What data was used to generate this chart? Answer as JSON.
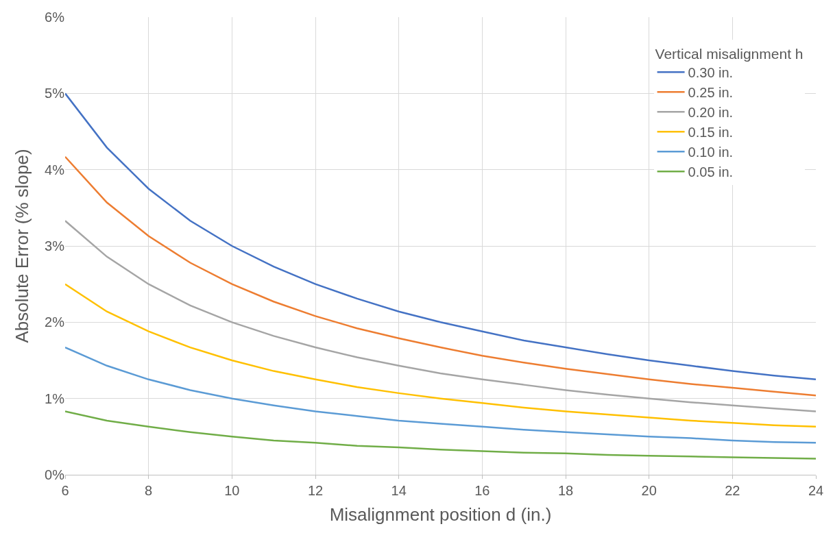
{
  "chart_data": {
    "type": "line",
    "xlabel": "Misalignment position d (in.)",
    "ylabel": "Absolute Error (% slope)",
    "legend_title": "Vertical misalignment h",
    "x": [
      6,
      7,
      8,
      9,
      10,
      11,
      12,
      13,
      14,
      15,
      16,
      17,
      18,
      19,
      20,
      21,
      22,
      23,
      24
    ],
    "series": [
      {
        "name": "0.30 in.",
        "color": "#4472c4",
        "values": [
          5.0,
          4.29,
          3.75,
          3.33,
          3.0,
          2.73,
          2.5,
          2.31,
          2.14,
          2.0,
          1.88,
          1.76,
          1.67,
          1.58,
          1.5,
          1.43,
          1.36,
          1.3,
          1.25
        ]
      },
      {
        "name": "0.25 in.",
        "color": "#ed7d31",
        "values": [
          4.17,
          3.57,
          3.13,
          2.78,
          2.5,
          2.27,
          2.08,
          1.92,
          1.79,
          1.67,
          1.56,
          1.47,
          1.39,
          1.32,
          1.25,
          1.19,
          1.14,
          1.09,
          1.04
        ]
      },
      {
        "name": "0.20 in.",
        "color": "#a5a5a5",
        "values": [
          3.33,
          2.86,
          2.5,
          2.22,
          2.0,
          1.82,
          1.67,
          1.54,
          1.43,
          1.33,
          1.25,
          1.18,
          1.11,
          1.05,
          1.0,
          0.95,
          0.91,
          0.87,
          0.83
        ]
      },
      {
        "name": "0.15 in.",
        "color": "#ffc000",
        "values": [
          2.5,
          2.14,
          1.88,
          1.67,
          1.5,
          1.36,
          1.25,
          1.15,
          1.07,
          1.0,
          0.94,
          0.88,
          0.83,
          0.79,
          0.75,
          0.71,
          0.68,
          0.65,
          0.63
        ]
      },
      {
        "name": "0.10 in.",
        "color": "#5b9bd5",
        "values": [
          1.67,
          1.43,
          1.25,
          1.11,
          1.0,
          0.91,
          0.83,
          0.77,
          0.71,
          0.67,
          0.63,
          0.59,
          0.56,
          0.53,
          0.5,
          0.48,
          0.45,
          0.43,
          0.42
        ]
      },
      {
        "name": "0.05 in.",
        "color": "#70ad47",
        "values": [
          0.83,
          0.71,
          0.63,
          0.56,
          0.5,
          0.45,
          0.42,
          0.38,
          0.36,
          0.33,
          0.31,
          0.29,
          0.28,
          0.26,
          0.25,
          0.24,
          0.23,
          0.22,
          0.21
        ]
      }
    ],
    "xlim": [
      6,
      24
    ],
    "xticks": [
      6,
      8,
      10,
      12,
      14,
      16,
      18,
      20,
      22,
      24
    ],
    "ylim": [
      0,
      6
    ],
    "yticks": [
      {
        "value": 0,
        "label": "0%"
      },
      {
        "value": 1,
        "label": "1%"
      },
      {
        "value": 2,
        "label": "2%"
      },
      {
        "value": 3,
        "label": "3%"
      },
      {
        "value": 4,
        "label": "4%"
      },
      {
        "value": 5,
        "label": "5%"
      },
      {
        "value": 6,
        "label": "6%"
      }
    ],
    "grid": true,
    "legend": "top right",
    "marker": "none",
    "line_style": "solid"
  }
}
